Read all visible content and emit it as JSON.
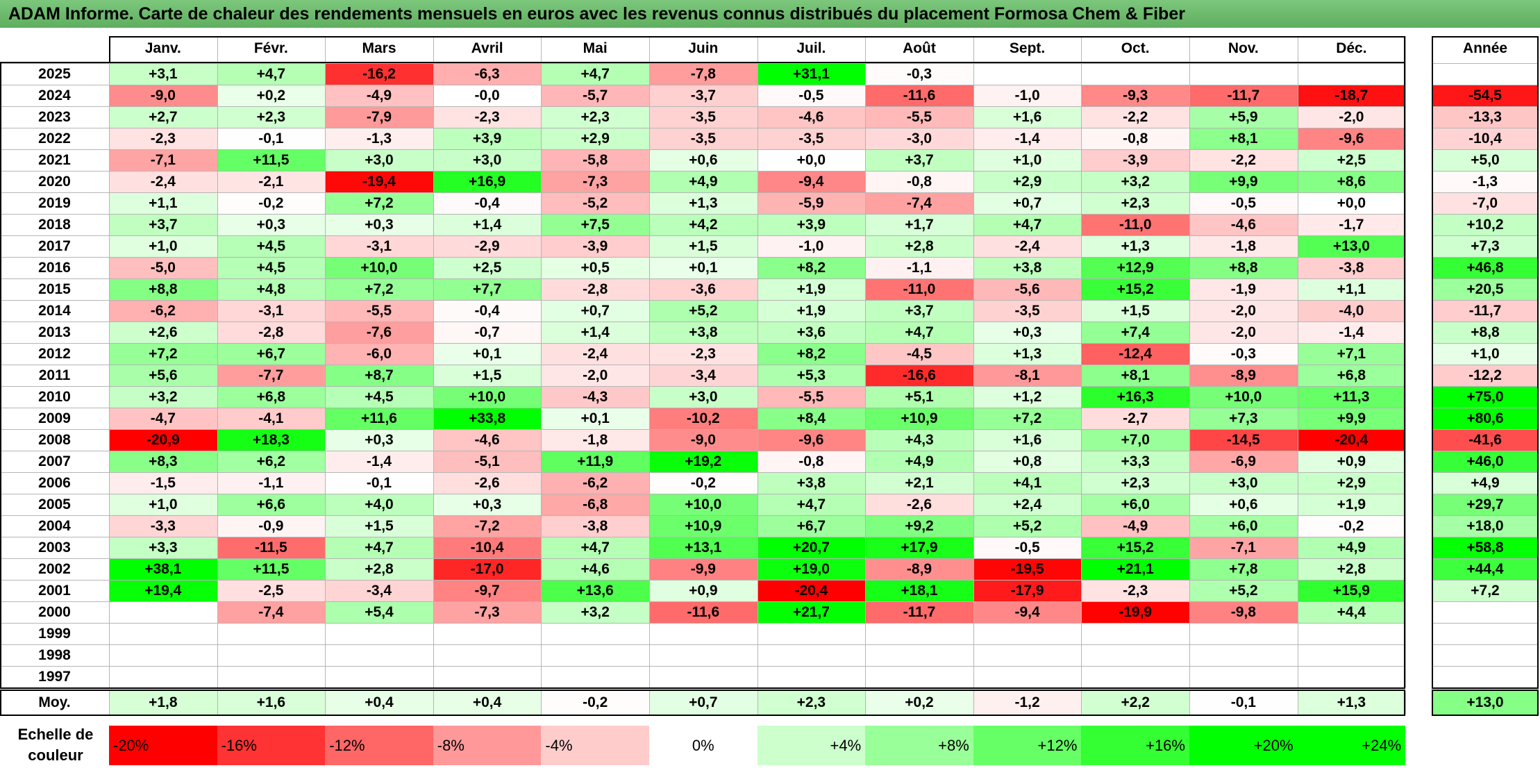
{
  "title": "ADAM Informe. Carte de chaleur des rendements mensuels en euros avec les revenus connus distribués du placement Formosa Chem & Fiber",
  "chart_data": {
    "type": "heatmap",
    "columns": [
      "Janv.",
      "Févr.",
      "Mars",
      "Avril",
      "Mai",
      "Juin",
      "Juil.",
      "Août",
      "Sept.",
      "Oct.",
      "Nov.",
      "Déc."
    ],
    "year_header": "Année",
    "rows": [
      {
        "label": "2025",
        "cells": [
          "+3,1",
          "+4,7",
          "-16,2",
          "-6,3",
          "+4,7",
          "-7,8",
          "+31,1",
          "-0,3",
          "",
          "",
          "",
          ""
        ],
        "year": ""
      },
      {
        "label": "2024",
        "cells": [
          "-9,0",
          "+0,2",
          "-4,9",
          "-0,0",
          "-5,7",
          "-3,7",
          "-0,5",
          "-11,6",
          "-1,0",
          "-9,3",
          "-11,7",
          "-18,7"
        ],
        "year": "-54,5"
      },
      {
        "label": "2023",
        "cells": [
          "+2,7",
          "+2,3",
          "-7,9",
          "-2,3",
          "+2,3",
          "-3,5",
          "-4,6",
          "-5,5",
          "+1,6",
          "-2,2",
          "+5,9",
          "-2,0"
        ],
        "year": "-13,3"
      },
      {
        "label": "2022",
        "cells": [
          "-2,3",
          "-0,1",
          "-1,3",
          "+3,9",
          "+2,9",
          "-3,5",
          "-3,5",
          "-3,0",
          "-1,4",
          "-0,8",
          "+8,1",
          "-9,6"
        ],
        "year": "-10,4"
      },
      {
        "label": "2021",
        "cells": [
          "-7,1",
          "+11,5",
          "+3,0",
          "+3,0",
          "-5,8",
          "+0,6",
          "+0,0",
          "+3,7",
          "+1,0",
          "-3,9",
          "-2,2",
          "+2,5"
        ],
        "year": "+5,0"
      },
      {
        "label": "2020",
        "cells": [
          "-2,4",
          "-2,1",
          "-19,4",
          "+16,9",
          "-7,3",
          "+4,9",
          "-9,4",
          "-0,8",
          "+2,9",
          "+3,2",
          "+9,9",
          "+8,6"
        ],
        "year": "-1,3"
      },
      {
        "label": "2019",
        "cells": [
          "+1,1",
          "-0,2",
          "+7,2",
          "-0,4",
          "-5,2",
          "+1,3",
          "-5,9",
          "-7,4",
          "+0,7",
          "+2,3",
          "-0,5",
          "+0,0"
        ],
        "year": "-7,0"
      },
      {
        "label": "2018",
        "cells": [
          "+3,7",
          "+0,3",
          "+0,3",
          "+1,4",
          "+7,5",
          "+4,2",
          "+3,9",
          "+1,7",
          "+4,7",
          "-11,0",
          "-4,6",
          "-1,7"
        ],
        "year": "+10,2"
      },
      {
        "label": "2017",
        "cells": [
          "+1,0",
          "+4,5",
          "-3,1",
          "-2,9",
          "-3,9",
          "+1,5",
          "-1,0",
          "+2,8",
          "-2,4",
          "+1,3",
          "-1,8",
          "+13,0"
        ],
        "year": "+7,3"
      },
      {
        "label": "2016",
        "cells": [
          "-5,0",
          "+4,5",
          "+10,0",
          "+2,5",
          "+0,5",
          "+0,1",
          "+8,2",
          "-1,1",
          "+3,8",
          "+12,9",
          "+8,8",
          "-3,8"
        ],
        "year": "+46,8"
      },
      {
        "label": "2015",
        "cells": [
          "+8,8",
          "+4,8",
          "+7,2",
          "+7,7",
          "-2,8",
          "-3,6",
          "+1,9",
          "-11,0",
          "-5,6",
          "+15,2",
          "-1,9",
          "+1,1"
        ],
        "year": "+20,5"
      },
      {
        "label": "2014",
        "cells": [
          "-6,2",
          "-3,1",
          "-5,5",
          "-0,4",
          "+0,7",
          "+5,2",
          "+1,9",
          "+3,7",
          "-3,5",
          "+1,5",
          "-2,0",
          "-4,0"
        ],
        "year": "-11,7"
      },
      {
        "label": "2013",
        "cells": [
          "+2,6",
          "-2,8",
          "-7,6",
          "-0,7",
          "+1,4",
          "+3,8",
          "+3,6",
          "+4,7",
          "+0,3",
          "+7,4",
          "-2,0",
          "-1,4"
        ],
        "year": "+8,8"
      },
      {
        "label": "2012",
        "cells": [
          "+7,2",
          "+6,7",
          "-6,0",
          "+0,1",
          "-2,4",
          "-2,3",
          "+8,2",
          "-4,5",
          "+1,3",
          "-12,4",
          "-0,3",
          "+7,1"
        ],
        "year": "+1,0"
      },
      {
        "label": "2011",
        "cells": [
          "+5,6",
          "-7,7",
          "+8,7",
          "+1,5",
          "-2,0",
          "-3,4",
          "+5,3",
          "-16,6",
          "-8,1",
          "+8,1",
          "-8,9",
          "+6,8"
        ],
        "year": "-12,2"
      },
      {
        "label": "2010",
        "cells": [
          "+3,2",
          "+6,8",
          "+4,5",
          "+10,0",
          "-4,3",
          "+3,0",
          "-5,5",
          "+5,1",
          "+1,2",
          "+16,3",
          "+10,0",
          "+11,3"
        ],
        "year": "+75,0"
      },
      {
        "label": "2009",
        "cells": [
          "-4,7",
          "-4,1",
          "+11,6",
          "+33,8",
          "+0,1",
          "-10,2",
          "+8,4",
          "+10,9",
          "+7,2",
          "-2,7",
          "+7,3",
          "+9,9"
        ],
        "year": "+80,6"
      },
      {
        "label": "2008",
        "cells": [
          "-20,9",
          "+18,3",
          "+0,3",
          "-4,6",
          "-1,8",
          "-9,0",
          "-9,6",
          "+4,3",
          "+1,6",
          "+7,0",
          "-14,5",
          "-20,4"
        ],
        "year": "-41,6"
      },
      {
        "label": "2007",
        "cells": [
          "+8,3",
          "+6,2",
          "-1,4",
          "-5,1",
          "+11,9",
          "+19,2",
          "-0,8",
          "+4,9",
          "+0,8",
          "+3,3",
          "-6,9",
          "+0,9"
        ],
        "year": "+46,0"
      },
      {
        "label": "2006",
        "cells": [
          "-1,5",
          "-1,1",
          "-0,1",
          "-2,6",
          "-6,2",
          "-0,2",
          "+3,8",
          "+2,1",
          "+4,1",
          "+2,3",
          "+3,0",
          "+2,9"
        ],
        "year": "+4,9"
      },
      {
        "label": "2005",
        "cells": [
          "+1,0",
          "+6,6",
          "+4,0",
          "+0,3",
          "-6,8",
          "+10,0",
          "+4,7",
          "-2,6",
          "+2,4",
          "+6,0",
          "+0,6",
          "+1,9"
        ],
        "year": "+29,7"
      },
      {
        "label": "2004",
        "cells": [
          "-3,3",
          "-0,9",
          "+1,5",
          "-7,2",
          "-3,8",
          "+10,9",
          "+6,7",
          "+9,2",
          "+5,2",
          "-4,9",
          "+6,0",
          "-0,2"
        ],
        "year": "+18,0"
      },
      {
        "label": "2003",
        "cells": [
          "+3,3",
          "-11,5",
          "+4,7",
          "-10,4",
          "+4,7",
          "+13,1",
          "+20,7",
          "+17,9",
          "-0,5",
          "+15,2",
          "-7,1",
          "+4,9"
        ],
        "year": "+58,8"
      },
      {
        "label": "2002",
        "cells": [
          "+38,1",
          "+11,5",
          "+2,8",
          "-17,0",
          "+4,6",
          "-9,9",
          "+19,0",
          "-8,9",
          "-19,5",
          "+21,1",
          "+7,8",
          "+2,8"
        ],
        "year": "+44,4"
      },
      {
        "label": "2001",
        "cells": [
          "+19,4",
          "-2,5",
          "-3,4",
          "-9,7",
          "+13,6",
          "+0,9",
          "-20,4",
          "+18,1",
          "-17,9",
          "-2,3",
          "+5,2",
          "+15,9"
        ],
        "year": "+7,2"
      },
      {
        "label": "2000",
        "cells": [
          "",
          "-7,4",
          "+5,4",
          "-7,3",
          "+3,2",
          "-11,6",
          "+21,7",
          "-11,7",
          "-9,4",
          "-19,9",
          "-9,8",
          "+4,4"
        ],
        "year": ""
      },
      {
        "label": "1999",
        "cells": [
          "",
          "",
          "",
          "",
          "",
          "",
          "",
          "",
          "",
          "",
          "",
          ""
        ],
        "year": ""
      },
      {
        "label": "1998",
        "cells": [
          "",
          "",
          "",
          "",
          "",
          "",
          "",
          "",
          "",
          "",
          "",
          ""
        ],
        "year": ""
      },
      {
        "label": "1997",
        "cells": [
          "",
          "",
          "",
          "",
          "",
          "",
          "",
          "",
          "",
          "",
          "",
          ""
        ],
        "year": ""
      }
    ],
    "average": {
      "label": "Moy.",
      "cells": [
        "+1,8",
        "+1,6",
        "+0,4",
        "+0,4",
        "-0,2",
        "+0,7",
        "+2,3",
        "+0,2",
        "-1,2",
        "+2,2",
        "-0,1",
        "+1,3"
      ],
      "year": "+13,0"
    },
    "color_scale": {
      "label_line1": "Echelle de",
      "label_line2": "couleur",
      "steps": [
        {
          "label": "-20%",
          "color": "#ff0000"
        },
        {
          "label": "-16%",
          "color": "#ff3333"
        },
        {
          "label": "-12%",
          "color": "#ff6666"
        },
        {
          "label": "-8%",
          "color": "#ff9999"
        },
        {
          "label": "-4%",
          "color": "#ffcccc"
        },
        {
          "label": "0%",
          "color": "#ffffff"
        },
        {
          "label": "+4%",
          "color": "#ccffcc"
        },
        {
          "label": "+8%",
          "color": "#99ff99"
        },
        {
          "label": "+12%",
          "color": "#66ff66"
        },
        {
          "label": "+16%",
          "color": "#33ff33"
        },
        {
          "label": "+20%",
          "color": "#00ff00"
        },
        {
          "label": "+24%",
          "color": "#00ff00"
        }
      ]
    }
  }
}
